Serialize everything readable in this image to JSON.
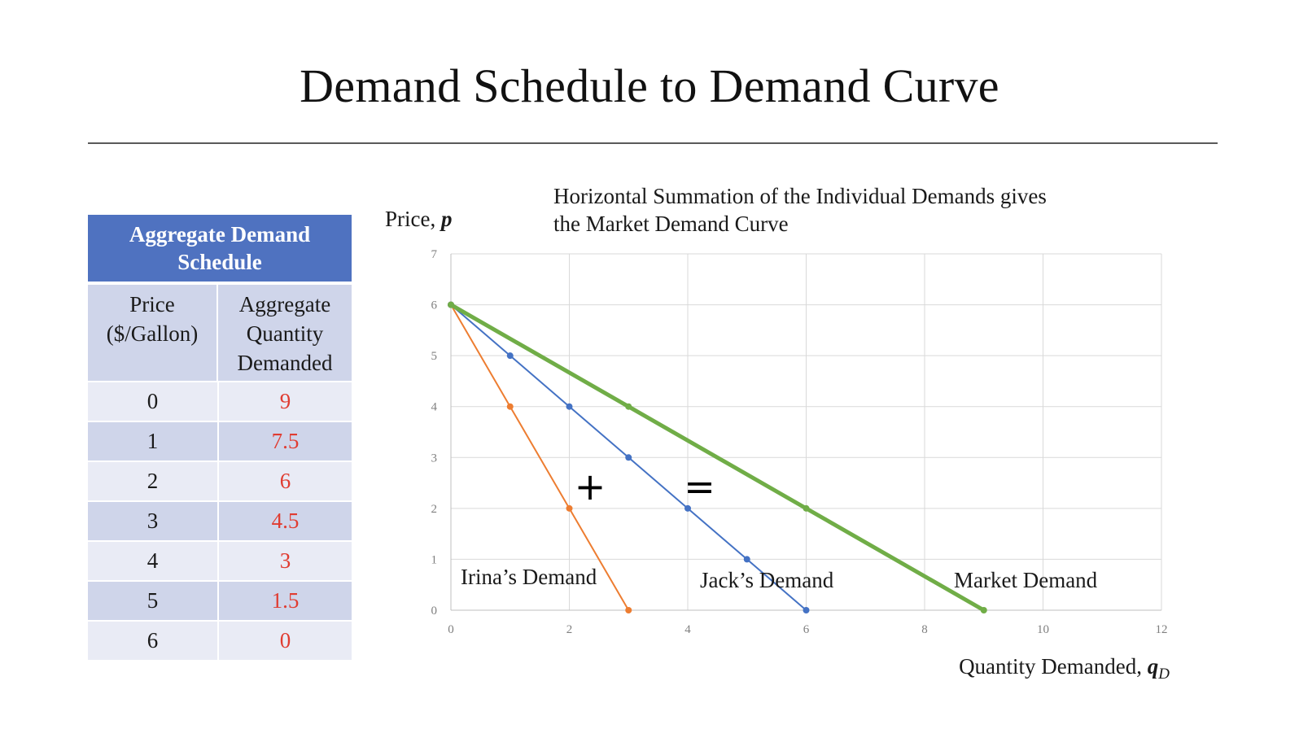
{
  "slide": {
    "title": "Demand Schedule to Demand Curve"
  },
  "table": {
    "header": "Aggregate Demand Schedule",
    "col_price": "Price ($/Gallon)",
    "col_qty": "Aggregate Quantity Demanded",
    "rows": [
      {
        "price": "0",
        "qty": "9"
      },
      {
        "price": "1",
        "qty": "7.5"
      },
      {
        "price": "2",
        "qty": "6"
      },
      {
        "price": "3",
        "qty": "4.5"
      },
      {
        "price": "4",
        "qty": "3"
      },
      {
        "price": "5",
        "qty": "1.5"
      },
      {
        "price": "6",
        "qty": "0"
      }
    ],
    "colors": {
      "header_bg": "#4f72c0",
      "row_light": "#e9ebf5",
      "row_dark": "#cfd5ea",
      "qty_text": "#e03c31"
    }
  },
  "chart_data": {
    "type": "line",
    "title": "Horizontal Summation of  the Individual Demands gives the Market Demand Curve",
    "title_lines": [
      "Horizontal Summation of  the Individual Demands gives",
      "the Market Demand Curve"
    ],
    "ylabel": "Price, ",
    "ylabel_var": "p",
    "xlabel": "Quantity Demanded, ",
    "xlabel_var": "q",
    "xlabel_sub": "D",
    "xlim": [
      0,
      12
    ],
    "ylim": [
      0,
      7
    ],
    "xticks": [
      0,
      2,
      4,
      6,
      8,
      10,
      12
    ],
    "yticks": [
      0,
      1,
      2,
      3,
      4,
      5,
      6,
      7
    ],
    "grid": true,
    "series": [
      {
        "name": "Irina’s Demand",
        "color": "#ed7d31",
        "width": 2,
        "points": [
          [
            0,
            6
          ],
          [
            1,
            4
          ],
          [
            2,
            2
          ],
          [
            3,
            0
          ]
        ]
      },
      {
        "name": "Jack’s Demand",
        "color": "#4472c4",
        "width": 2,
        "points": [
          [
            0,
            6
          ],
          [
            1,
            5
          ],
          [
            2,
            4
          ],
          [
            3,
            3
          ],
          [
            4,
            2
          ],
          [
            5,
            1
          ],
          [
            6,
            0
          ]
        ]
      },
      {
        "name": "Market Demand",
        "color": "#70ad47",
        "width": 5,
        "points": [
          [
            0,
            6
          ],
          [
            3,
            4
          ],
          [
            6,
            2
          ],
          [
            9,
            0
          ]
        ]
      }
    ],
    "annotations": [
      {
        "text": "+",
        "x": 2.35,
        "y": 2.4
      },
      {
        "text": "=",
        "x": 4.2,
        "y": 2.4
      }
    ]
  }
}
